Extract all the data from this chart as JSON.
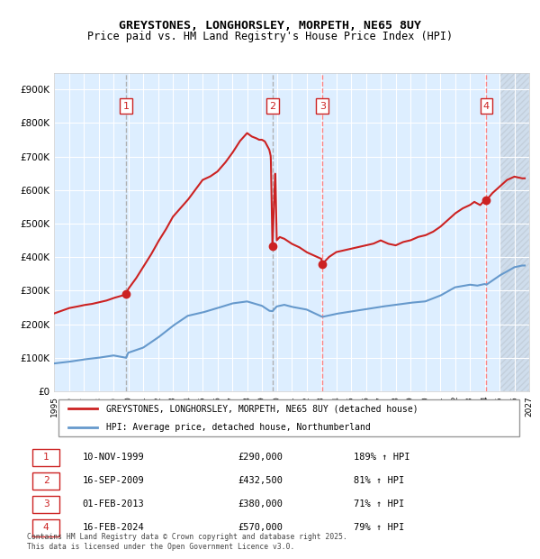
{
  "title": "GREYSTONES, LONGHORSLEY, MORPETH, NE65 8UY",
  "subtitle": "Price paid vs. HM Land Registry's House Price Index (HPI)",
  "xlim": [
    1995.0,
    2027.0
  ],
  "ylim": [
    0,
    950000
  ],
  "yticks": [
    0,
    100000,
    200000,
    300000,
    400000,
    500000,
    600000,
    700000,
    800000,
    900000
  ],
  "ylabel_format": "£{0}K",
  "xtick_years": [
    1995,
    1996,
    1997,
    1998,
    1999,
    2000,
    2001,
    2002,
    2003,
    2004,
    2005,
    2006,
    2007,
    2008,
    2009,
    2010,
    2011,
    2012,
    2013,
    2014,
    2015,
    2016,
    2017,
    2018,
    2019,
    2020,
    2021,
    2022,
    2023,
    2024,
    2025,
    2026,
    2027
  ],
  "hpi_color": "#6699cc",
  "price_color": "#cc2222",
  "bg_color": "#ddeeff",
  "grid_color": "#ffffff",
  "hatch_color": "#ccccdd",
  "sale_dates": [
    1999.86,
    2009.71,
    2013.08,
    2024.12
  ],
  "sale_prices": [
    290000,
    432500,
    380000,
    570000
  ],
  "sale_labels": [
    "1",
    "2",
    "3",
    "4"
  ],
  "vline_colors": [
    "#aaaaaa",
    "#aaaaaa",
    "#ff6666",
    "#ff6666"
  ],
  "vline_styles": [
    "--",
    "--",
    "--",
    "--"
  ],
  "legend_red_label": "GREYSTONES, LONGHORSLEY, MORPETH, NE65 8UY (detached house)",
  "legend_blue_label": "HPI: Average price, detached house, Northumberland",
  "table_rows": [
    {
      "num": "1",
      "date": "10-NOV-1999",
      "price": "£290,000",
      "pct": "189% ↑ HPI"
    },
    {
      "num": "2",
      "date": "16-SEP-2009",
      "price": "£432,500",
      "pct": "81% ↑ HPI"
    },
    {
      "num": "3",
      "date": "01-FEB-2013",
      "price": "£380,000",
      "pct": "71% ↑ HPI"
    },
    {
      "num": "4",
      "date": "16-FEB-2024",
      "price": "£570,000",
      "pct": "79% ↑ HPI"
    }
  ],
  "footnote": "Contains HM Land Registry data © Crown copyright and database right 2025.\nThis data is licensed under the Open Government Licence v3.0."
}
